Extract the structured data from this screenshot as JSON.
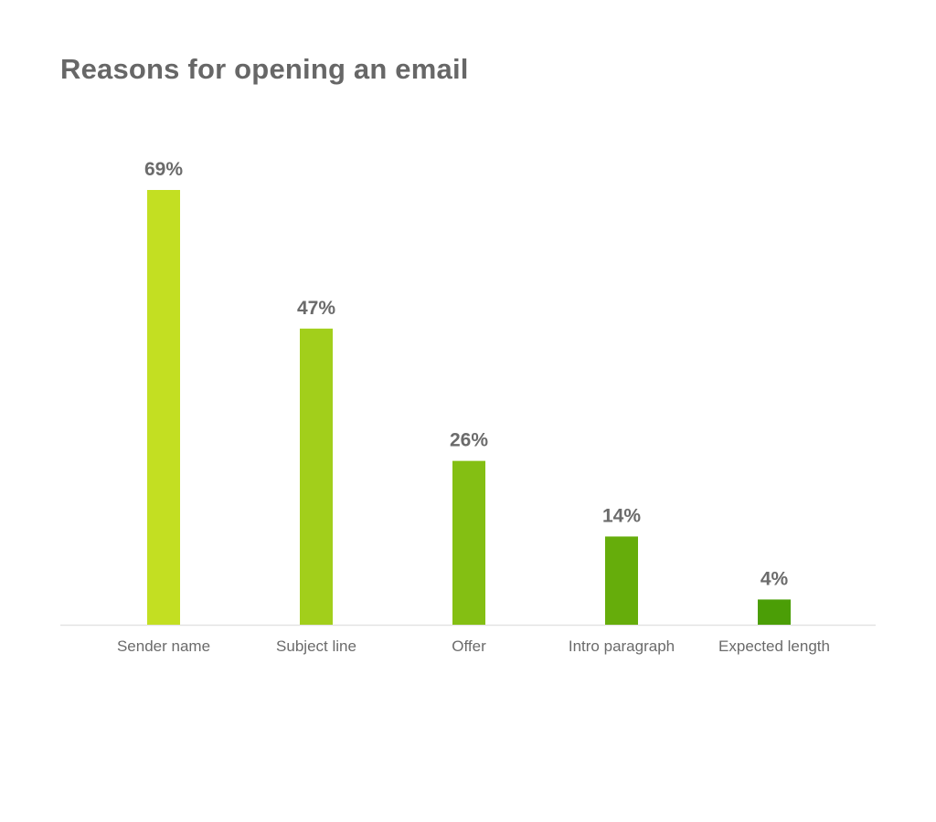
{
  "chart_data": {
    "type": "bar",
    "title": "Reasons for opening an email",
    "categories": [
      "Sender name",
      "Subject line",
      "Offer",
      "Intro paragraph",
      "Expected length"
    ],
    "values": [
      69,
      47,
      26,
      14,
      4
    ],
    "value_labels": [
      "69%",
      "47%",
      "26%",
      "14%",
      "4%"
    ],
    "unit": "%",
    "bar_colors": [
      "#c3df22",
      "#a2cf1b",
      "#84bf13",
      "#66ad0b",
      "#4b9e06"
    ],
    "ylim": [
      0,
      69
    ],
    "grid": false,
    "legend": "none"
  }
}
